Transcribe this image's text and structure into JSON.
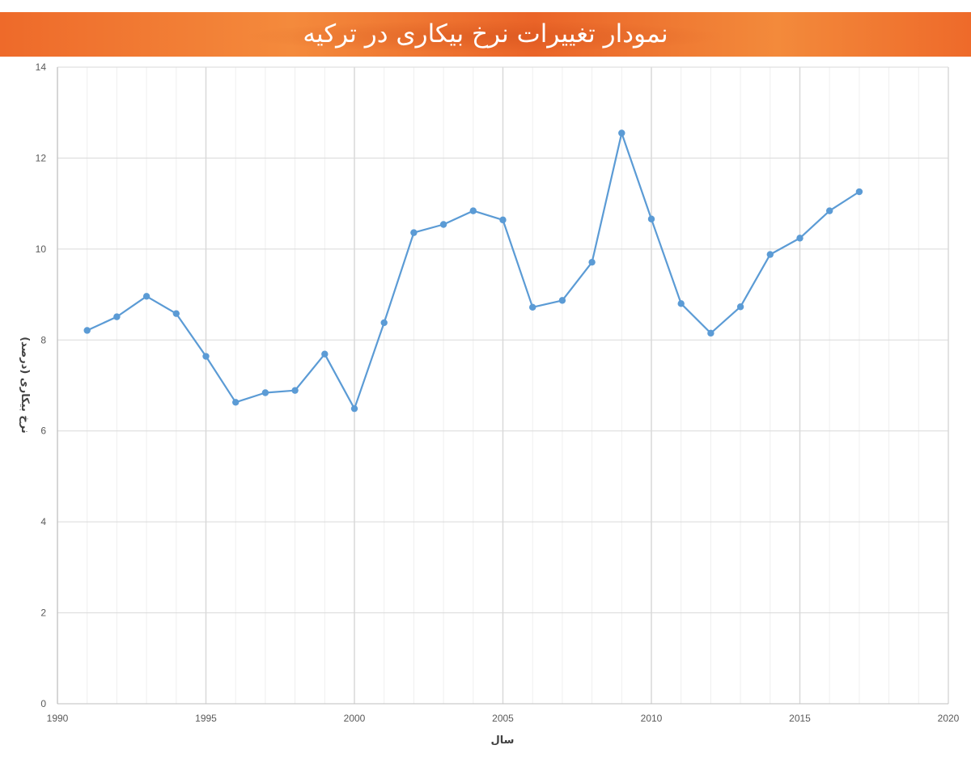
{
  "header": {
    "title": "نمودار تغییرات نرخ بیکاری در ترکیه"
  },
  "chart_data": {
    "type": "scatter",
    "title": "نمودار تغییرات نرخ بیکاری در ترکیه",
    "xlabel": "سال",
    "ylabel": "نرخ بیکاری (درصد)",
    "xlim": [
      1990,
      2020
    ],
    "ylim": [
      0,
      14
    ],
    "x_ticks": [
      1990,
      1995,
      2000,
      2005,
      2010,
      2015,
      2020
    ],
    "y_ticks": [
      0,
      2,
      4,
      6,
      8,
      10,
      12,
      14
    ],
    "grid": true,
    "legend": "none",
    "line_color": "#5b9bd5",
    "series": [
      {
        "x": [
          1991,
          1992,
          1993,
          1994,
          1995,
          1996,
          1997,
          1998,
          1999,
          2000,
          2001,
          2002,
          2003,
          2004,
          2005,
          2006,
          2007,
          2008,
          2009,
          2010,
          2011,
          2012,
          2013,
          2014,
          2015,
          2016,
          2017
        ],
        "y": [
          8.21,
          8.51,
          8.96,
          8.58,
          7.64,
          6.63,
          6.84,
          6.89,
          7.69,
          6.49,
          8.38,
          10.36,
          10.54,
          10.84,
          10.64,
          8.72,
          8.87,
          9.71,
          12.55,
          10.66,
          8.8,
          8.15,
          8.73,
          9.88,
          10.24,
          10.84,
          11.26
        ]
      }
    ]
  }
}
